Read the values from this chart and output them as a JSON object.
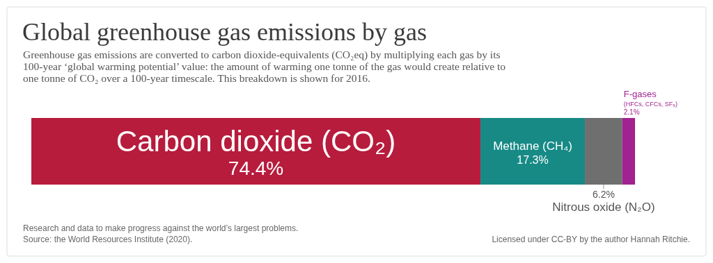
{
  "chart_data": {
    "type": "bar",
    "orientation": "horizontal",
    "stacked": true,
    "title": "Global greenhouse gas emissions by gas",
    "subtitle": "Greenhouse gas emissions are converted to carbon dioxide-equivalents (CO₂eq) by multiplying each gas by its 100-year ‘global warming potential’ value: the amount of warming one tonne of the gas would create relative to one tonne of CO₂ over a 100-year timescale. This breakdown is shown for 2016.",
    "categories": [
      null
    ],
    "xlim": [
      0,
      100
    ],
    "grid": false,
    "legend": false,
    "series": [
      {
        "name": "Carbon dioxide (CO₂)",
        "color": "#b71c3d",
        "values": [
          74.4
        ],
        "value_labels": [
          "74.4%"
        ]
      },
      {
        "name": "Methane (CH₄)",
        "color": "#178a86",
        "values": [
          17.3
        ],
        "value_labels": [
          "17.3%"
        ]
      },
      {
        "name": "Nitrous oxide (N₂O)",
        "color": "#6f6f6f",
        "values": [
          6.2
        ],
        "value_labels": [
          "6.2%"
        ]
      },
      {
        "name": "F-gases (HFCs, CFCs, SF₆)",
        "color": "#a1238f",
        "values": [
          2.1
        ],
        "value_labels": [
          "2.1%"
        ]
      }
    ],
    "annotations": [
      "Research and data to make progress against the world’s largest problems.",
      "Source: the World Resources Institute (2020).",
      "Licensed under CC-BY by the author Hannah Ritchie."
    ]
  }
}
